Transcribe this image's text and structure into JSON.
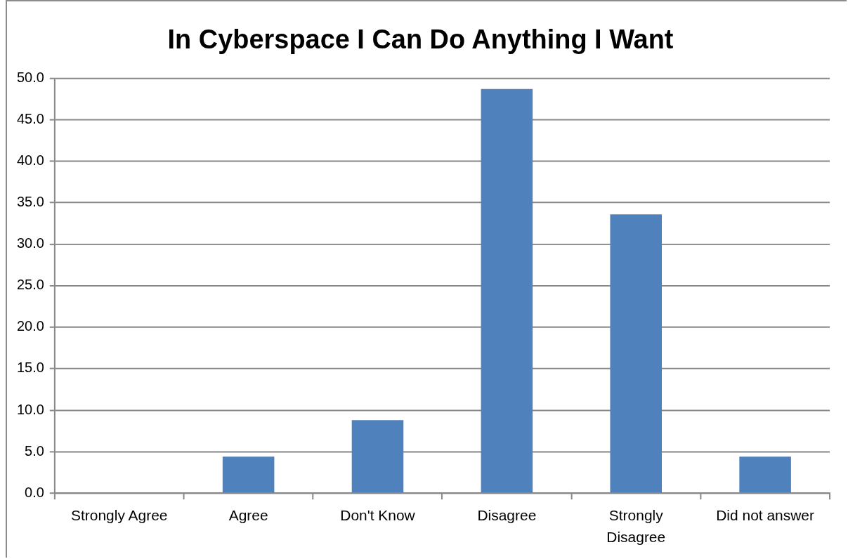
{
  "chart_data": {
    "type": "bar",
    "title": "In Cyberspace I Can Do Anything I Want",
    "categories": [
      "Strongly Agree",
      "Agree",
      "Don't Know",
      "Disagree",
      "Strongly Disagree",
      "Did not answer"
    ],
    "values": [
      0,
      4.4,
      8.8,
      48.7,
      33.6,
      4.4
    ],
    "color": "#4f81bd",
    "ylim": [
      0,
      50
    ],
    "yticks": [
      {
        "value": 0,
        "label": "0.0"
      },
      {
        "value": 5,
        "label": "5.0"
      },
      {
        "value": 10,
        "label": "10.0"
      },
      {
        "value": 15,
        "label": "15.0"
      },
      {
        "value": 20,
        "label": "20.0"
      },
      {
        "value": 25,
        "label": "25.0"
      },
      {
        "value": 30,
        "label": "30.0"
      },
      {
        "value": 35,
        "label": "35.0"
      },
      {
        "value": 40,
        "label": "40.0"
      },
      {
        "value": 45,
        "label": "45.0"
      },
      {
        "value": 50,
        "label": "50.0"
      }
    ],
    "grid": "y",
    "legend": false
  }
}
